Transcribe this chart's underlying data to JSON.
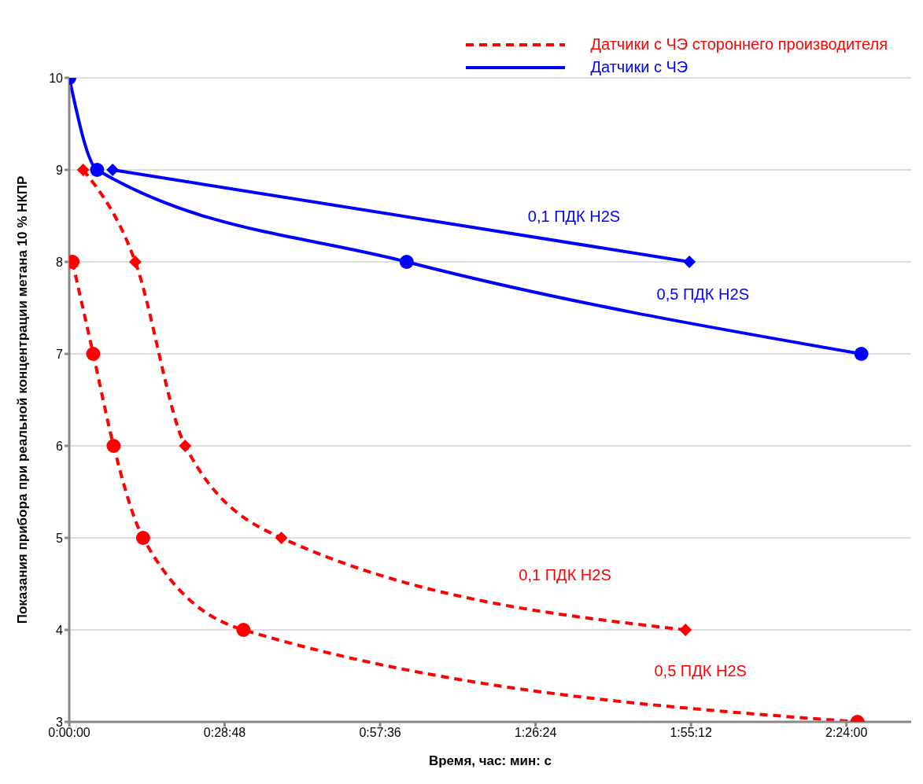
{
  "chart_data": {
    "type": "line",
    "xlabel": "Время, час: мин: с",
    "ylabel": "Показания прибора при реальной концентрации метана 10 % НКПР",
    "xlim": [
      0,
      2.6
    ],
    "xticks": [
      {
        "value": 0,
        "label": "0:00:00"
      },
      {
        "value": 0.48,
        "label": "0:28:48"
      },
      {
        "value": 0.96,
        "label": "0:57:36"
      },
      {
        "value": 1.44,
        "label": "1:26:24"
      },
      {
        "value": 1.92,
        "label": "1:55:12"
      },
      {
        "value": 2.4,
        "label": "2:24:00"
      }
    ],
    "ylim": [
      3,
      10
    ],
    "yticks": [
      3,
      4,
      5,
      6,
      7,
      8,
      9,
      10
    ],
    "grid": "y",
    "legend": "top right",
    "series": [
      {
        "name": "Датчики с ЧЭ стороннего производителя",
        "color": "#ff0000",
        "line_style": "dashed",
        "marker": "diamond",
        "x": [
          0.043,
          0.204,
          0.358,
          0.655,
          1.903
        ],
        "values": [
          9,
          8,
          6,
          5,
          4
        ]
      },
      {
        "color": "#ff0000",
        "line_style": "dashed",
        "marker": "circle",
        "x": [
          0.01,
          0.074,
          0.137,
          0.228,
          0.538,
          2.434
        ],
        "values": [
          8,
          7,
          6,
          5,
          4,
          3
        ]
      },
      {
        "name": "Датчики с ЧЭ",
        "color": "#0000ff",
        "line_style": "solid",
        "marker": "diamond",
        "x": [
          0.134,
          1.915
        ],
        "values": [
          9,
          8
        ]
      },
      {
        "color": "#0000ff",
        "line_style": "solid",
        "marker": "circle",
        "x": [
          0,
          0.086,
          1.042,
          2.446
        ],
        "values": [
          10,
          9,
          8,
          7
        ]
      }
    ],
    "annotations": [
      "0,1 ПДК H2S",
      "0,5 ПДК H2S",
      "0,1 ПДК H2S",
      "0,5 ПДК H2S"
    ]
  }
}
